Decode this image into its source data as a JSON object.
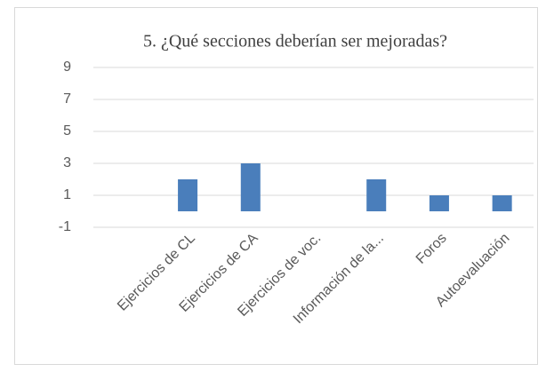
{
  "chart_data": {
    "type": "bar",
    "title": "5. ¿Qué secciones deberían ser mejoradas?",
    "categories": [
      null,
      "Ejercicios de CL",
      "Ejercicios de CA",
      "Ejercicios de voc.",
      "Información de la...",
      "Foros",
      "Autoevaluación"
    ],
    "values": [
      0,
      2,
      3,
      0,
      2,
      1,
      1
    ],
    "color": "#4a7ebb",
    "ylim": [
      -1,
      9
    ],
    "yticks": [
      -1,
      1,
      3,
      5,
      7,
      9
    ],
    "grid": true
  }
}
